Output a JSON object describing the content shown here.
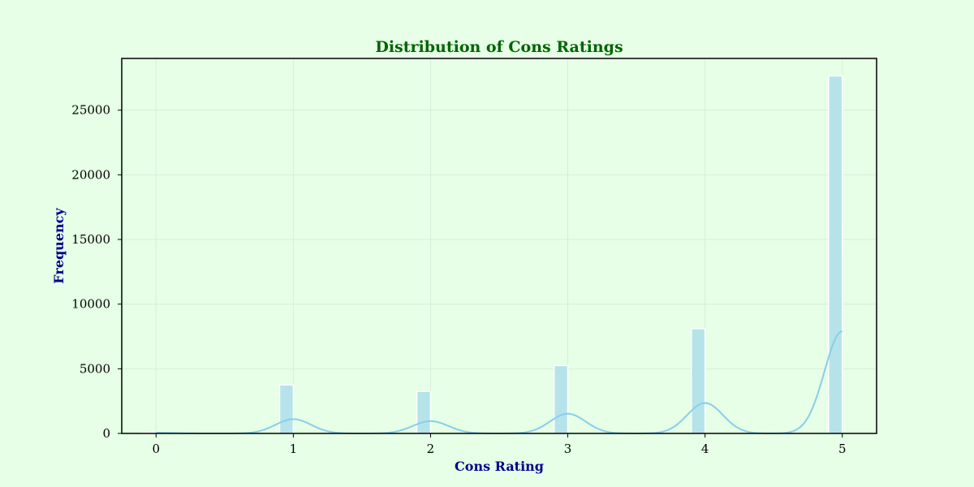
{
  "chart_data": {
    "type": "bar",
    "title": "Distribution of Cons Ratings",
    "xlabel": "Cons Rating",
    "ylabel": "Frequency",
    "xlim": [
      -0.25,
      5.25
    ],
    "ylim": [
      0,
      29000
    ],
    "x_ticks": [
      "0",
      "1",
      "2",
      "3",
      "4",
      "5"
    ],
    "y_ticks": [
      "0",
      "5000",
      "10000",
      "15000",
      "20000",
      "25000"
    ],
    "grid": true,
    "bins": [
      {
        "x": 0,
        "value": 80
      },
      {
        "x": 1,
        "value": 3750
      },
      {
        "x": 2,
        "value": 3250
      },
      {
        "x": 3,
        "value": 5250
      },
      {
        "x": 4,
        "value": 8100
      },
      {
        "x": 5,
        "value": 27650
      }
    ],
    "kde_peaks": [
      {
        "x": 0,
        "value": 55
      },
      {
        "x": 1,
        "value": 1100
      },
      {
        "x": 2,
        "value": 950
      },
      {
        "x": 3,
        "value": 1520
      },
      {
        "x": 4,
        "value": 2350
      },
      {
        "x": 5,
        "value": 7900
      }
    ],
    "colors": {
      "background": "#e6ffe6",
      "bar_fill": "#b6e3ea",
      "bar_edge": "#ffffff",
      "kde_line": "#87ceeb",
      "title": "#006400",
      "axis_label": "#00008b",
      "grid": "#d6eed6"
    }
  }
}
